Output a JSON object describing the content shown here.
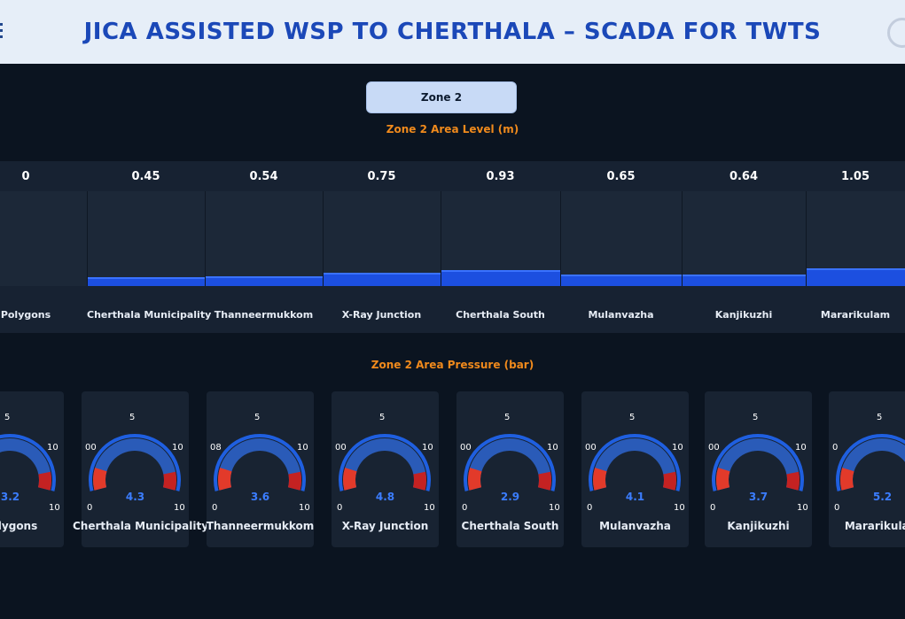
{
  "header": {
    "title": "JICA ASSISTED WSP TO CHERTHALA – SCADA FOR TWTS"
  },
  "zone_tab": {
    "label": "Zone 2"
  },
  "level_section": {
    "title": "Zone 2 Area Level (m)",
    "max_level": 1.5,
    "areas": [
      {
        "name": "Polygons",
        "value": "0"
      },
      {
        "name": "Cherthala Municipality",
        "value": "0.45"
      },
      {
        "name": "Thanneermukkom",
        "value": "0.54"
      },
      {
        "name": "X-Ray Junction",
        "value": "0.75"
      },
      {
        "name": "Cherthala South",
        "value": "0.93"
      },
      {
        "name": "Mulanvazha",
        "value": "0.65"
      },
      {
        "name": "Kanjikuzhi",
        "value": "0.64"
      },
      {
        "name": "Mararikulam",
        "value": "1.05"
      }
    ]
  },
  "pressure_section": {
    "title": "Zone 2 Area Pressure (bar)",
    "scale_labels": {
      "min": "0",
      "mid": "5",
      "max_upper": "10",
      "max_lower": "10"
    },
    "gauges": [
      {
        "name": "Polygons",
        "value": "3.2",
        "left_label": ""
      },
      {
        "name": "Cherthala Municipality",
        "value": "4.3",
        "left_label": "00"
      },
      {
        "name": "Thanneermukkom",
        "value": "3.6",
        "left_label": "08"
      },
      {
        "name": "X-Ray Junction",
        "value": "4.8",
        "left_label": "00"
      },
      {
        "name": "Cherthala South",
        "value": "2.9",
        "left_label": "00"
      },
      {
        "name": "Mulanvazha",
        "value": "4.1",
        "left_label": "00"
      },
      {
        "name": "Kanjikuzhi",
        "value": "3.7",
        "left_label": "00"
      },
      {
        "name": "Mararikulam",
        "value": "5.2",
        "left_label": "0"
      }
    ]
  },
  "colors": {
    "accent_orange": "#f08a1c",
    "title_blue": "#1b48b8",
    "bar_blue": "#1c4fe0",
    "gauge_red": "#e23a2a",
    "gauge_blue": "#2f6fe8",
    "value_blue": "#3b7dff"
  }
}
